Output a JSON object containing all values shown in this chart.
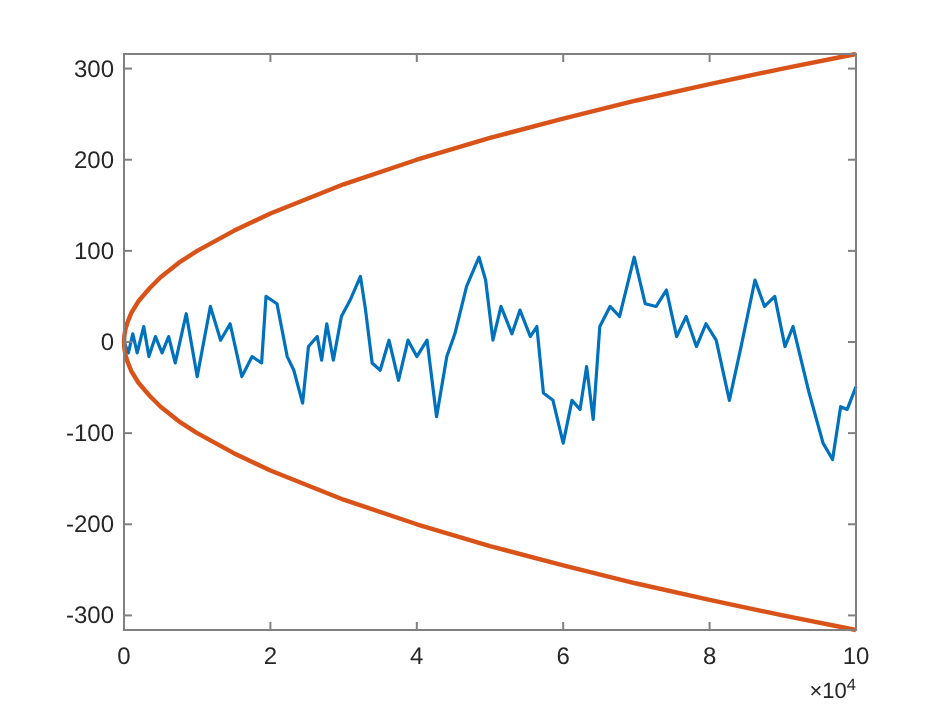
{
  "chart_data": {
    "type": "line",
    "xlim": [
      0,
      10
    ],
    "ylim": [
      -316,
      316
    ],
    "xticks": [
      0,
      2,
      4,
      6,
      8,
      10
    ],
    "yticks": [
      -300,
      -200,
      -100,
      0,
      100,
      200,
      300
    ],
    "annotations": [
      "×10$^{4}$"
    ],
    "grid": false,
    "line_style": "solid",
    "series": [
      {
        "color": "#0072bd",
        "x": [
          0,
          0.06,
          0.12,
          0.18,
          0.27,
          0.34,
          0.43,
          0.52,
          0.61,
          0.7,
          0.85,
          1,
          1.18,
          1.32,
          1.45,
          1.61,
          1.75,
          1.88,
          1.94,
          2.09,
          2.23,
          2.32,
          2.44,
          2.52,
          2.64,
          2.7,
          2.77,
          2.86,
          2.97,
          3.09,
          3.23,
          3.3,
          3.39,
          3.5,
          3.62,
          3.75,
          3.88,
          4,
          4.14,
          4.27,
          4.41,
          4.52,
          4.68,
          4.85,
          4.94,
          5.04,
          5.15,
          5.3,
          5.41,
          5.55,
          5.64,
          5.73,
          5.86,
          6,
          6.12,
          6.23,
          6.32,
          6.41,
          6.5,
          6.64,
          6.77,
          6.97,
          7.12,
          7.27,
          7.41,
          7.55,
          7.68,
          7.82,
          7.95,
          8.09,
          8.27,
          8.43,
          8.62,
          8.75,
          8.89,
          9.03,
          9.14,
          9.36,
          9.55,
          9.68,
          9.79,
          9.88,
          10
        ],
        "values": [
          0,
          -12,
          9,
          -12,
          17,
          -16,
          6,
          -12,
          6,
          -23,
          31,
          -38,
          39,
          2,
          20,
          -38,
          -16,
          -23,
          50,
          42,
          -16,
          -31,
          -67,
          -5,
          6,
          -20,
          20,
          -20,
          28,
          46,
          72,
          35,
          -23,
          -31,
          2,
          -42,
          2,
          -16,
          2,
          -82,
          -16,
          9,
          61,
          93,
          68,
          2,
          39,
          9,
          35,
          6,
          17,
          -56,
          -64,
          -111,
          -64,
          -74,
          -27,
          -85,
          17,
          39,
          28,
          93,
          42,
          39,
          57,
          6,
          28,
          -5,
          20,
          2,
          -64,
          -5,
          68,
          39,
          50,
          -5,
          17,
          -56,
          -111,
          -129,
          -71,
          -74,
          -49
        ]
      },
      {
        "color": "#d95319",
        "x": [
          10,
          9,
          8,
          7,
          6,
          5,
          4,
          3,
          2,
          1.5,
          1,
          0.75,
          0.5,
          0.35,
          0.2,
          0.1,
          0.05,
          0.02,
          0.005,
          0,
          0.005,
          0.02,
          0.05,
          0.1,
          0.2,
          0.35,
          0.5,
          0.75,
          1,
          1.5,
          2,
          3,
          4,
          5,
          6,
          7,
          8,
          9,
          10
        ],
        "values": [
          316,
          300,
          283,
          265,
          245,
          224,
          200,
          173,
          141,
          122,
          100,
          87,
          71,
          59,
          45,
          32,
          22,
          14,
          7,
          0,
          -7,
          -14,
          -22,
          -32,
          -45,
          -59,
          -71,
          -87,
          -100,
          -122,
          -141,
          -173,
          -200,
          -224,
          -245,
          -265,
          -283,
          -300,
          -316
        ]
      }
    ]
  }
}
